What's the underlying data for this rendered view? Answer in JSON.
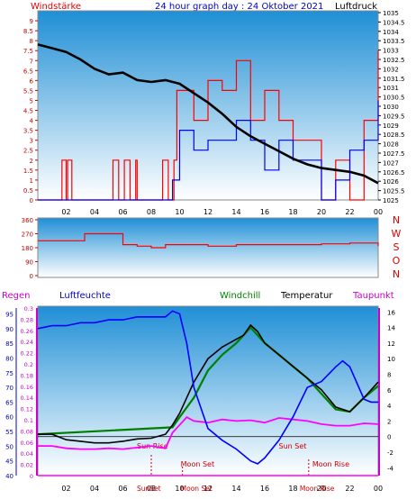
{
  "header": {
    "windstarke": "Windstärke",
    "title": "24 hour graph day : 24 Oktober 2021",
    "luftdruck": "Luftdruck"
  },
  "colors": {
    "wind": "#ff0000",
    "gust": "#0000ff",
    "pressure": "#000000",
    "humidity": "#0000ff",
    "windchill": "#008000",
    "temperature": "#000000",
    "dewpoint": "#ff00ff",
    "rain": "#ff00ff",
    "panel_top": "#1f8fd6",
    "panel_bottom": "#ffffff"
  },
  "x_ticks": [
    "02",
    "04",
    "06",
    "08",
    "10",
    "12",
    "14",
    "16",
    "18",
    "20",
    "22",
    "00"
  ],
  "compass": [
    "N",
    "W",
    "S",
    "O",
    "N"
  ],
  "chart_data": [
    {
      "type": "line",
      "title": "Windstärke / Luftdruck",
      "x_range_hours": [
        0,
        24
      ],
      "left_axis": {
        "label": "Windstärke",
        "ticks": [
          "0",
          "0.5",
          "1",
          "1.5",
          "2",
          "2.5",
          "3",
          "3.5",
          "4",
          "4.5",
          "5",
          "5.5",
          "6",
          "6.5",
          "7",
          "7.5",
          "8",
          "8.5",
          "9"
        ],
        "range": [
          0,
          9.5
        ]
      },
      "right_axis": {
        "label": "Luftdruck",
        "ticks": [
          "1025",
          "1025.5",
          "1026",
          "1026.5",
          "1027",
          "1027.5",
          "1028",
          "1028.5",
          "1029",
          "1029.5",
          "1030",
          "1030.5",
          "1031",
          "1031.5",
          "1032",
          "1032.5",
          "1033",
          "1033.5",
          "1034",
          "1034.5",
          "1035"
        ],
        "range": [
          1025,
          1035
        ]
      },
      "series": [
        {
          "name": "Luftdruck",
          "x": [
            0,
            1,
            2,
            3,
            4,
            5,
            6,
            7,
            8,
            9,
            10,
            11,
            12,
            13,
            14,
            15,
            16,
            17,
            18,
            19,
            20,
            21,
            22,
            23,
            24
          ],
          "values": [
            1033.3,
            1033.1,
            1032.9,
            1032.5,
            1032.0,
            1031.7,
            1031.8,
            1031.4,
            1031.3,
            1031.4,
            1031.2,
            1030.7,
            1030.2,
            1029.6,
            1028.9,
            1028.4,
            1028.0,
            1027.6,
            1027.2,
            1026.9,
            1026.7,
            1026.6,
            1026.5,
            1026.3,
            1025.9
          ]
        },
        {
          "name": "Wind",
          "x": [
            0,
            1.6,
            1.7,
            2.0,
            2.1,
            2.4,
            5.2,
            5.3,
            5.7,
            6.1,
            6.5,
            6.9,
            7.0,
            7.4,
            8.6,
            8.8,
            9.2,
            9.5,
            9.6,
            9.8,
            10,
            11,
            12,
            13,
            14,
            15,
            16,
            17,
            18,
            19,
            20,
            21,
            22,
            23,
            24
          ],
          "values": [
            0,
            0,
            2,
            0,
            2,
            0,
            0,
            2,
            0,
            2,
            0,
            2,
            0,
            0,
            0,
            2,
            0,
            0,
            2,
            5.5,
            5.5,
            4,
            6,
            5.5,
            7,
            4,
            5.5,
            4,
            3,
            3,
            0,
            2,
            0,
            4,
            7.5
          ]
        },
        {
          "name": "Böen",
          "x": [
            0,
            9,
            9.5,
            10,
            11,
            12,
            13,
            14,
            15,
            16,
            17,
            18,
            19,
            20,
            21,
            22,
            23,
            24
          ],
          "values": [
            0,
            0,
            1,
            3.5,
            2.5,
            3,
            3,
            4,
            3,
            1.5,
            3,
            2,
            2,
            0,
            1,
            2.5,
            3,
            5
          ]
        }
      ]
    },
    {
      "type": "line",
      "title": "Windrichtung",
      "x_range_hours": [
        0,
        24
      ],
      "y_ticks": [
        "0",
        "90",
        "180",
        "270",
        "360"
      ],
      "y_range": [
        0,
        360
      ],
      "series": [
        {
          "name": "Windrichtung",
          "x": [
            0,
            3.2,
            3.3,
            5.0,
            6.0,
            7.0,
            8.0,
            9.0,
            10,
            12,
            14,
            16,
            18,
            20,
            22,
            24
          ],
          "values": [
            225,
            225,
            270,
            270,
            200,
            190,
            180,
            200,
            200,
            190,
            200,
            200,
            200,
            205,
            210,
            190
          ]
        }
      ]
    },
    {
      "type": "line",
      "title": "Regen / Luftfeuchte / Temperatur",
      "x_range_hours": [
        0,
        24
      ],
      "labels": {
        "regen": "Regen",
        "luftfeuchte": "Luftfeuchte",
        "windchill": "Windchill",
        "temperatur": "Temperatur",
        "taupunkt": "Taupunkt"
      },
      "rain_axis": {
        "ticks": [
          "0",
          "0.02",
          "0.04",
          "0.06",
          "0.08",
          "0.1",
          "0.12",
          "0.14",
          "0.16",
          "0.18",
          "0.2",
          "0.22",
          "0.24",
          "0.26",
          "0.28",
          "0.3"
        ],
        "range": [
          0,
          0.3
        ]
      },
      "humidity_axis": {
        "ticks": [
          "40",
          "45",
          "50",
          "55",
          "60",
          "65",
          "70",
          "75",
          "80",
          "85",
          "90",
          "95"
        ],
        "range": [
          40,
          97
        ]
      },
      "temp_axis": {
        "ticks": [
          "-4",
          "-2",
          "0",
          "2",
          "4",
          "6",
          "8",
          "10",
          "12",
          "14",
          "16"
        ],
        "range": [
          -5,
          16.5
        ]
      },
      "series": [
        {
          "name": "Luftfeuchte",
          "x": [
            0,
            1,
            2,
            3,
            4,
            5,
            6,
            7,
            8,
            9,
            9.5,
            10,
            10.5,
            11,
            11.5,
            12,
            13,
            14,
            15,
            15.5,
            16,
            17,
            18,
            19,
            20,
            21,
            21.5,
            22,
            23,
            23.5,
            24
          ],
          "values": [
            90,
            91,
            91,
            92,
            92,
            93,
            93,
            94,
            94,
            94,
            96,
            95,
            85,
            70,
            63,
            56,
            52,
            49,
            45,
            44,
            46,
            52,
            60,
            70,
            72,
            77,
            79,
            77,
            66,
            65,
            65
          ]
        },
        {
          "name": "Temperatur",
          "x": [
            0,
            1,
            2,
            3,
            4,
            5,
            6,
            7,
            8,
            9,
            9.5,
            10,
            11,
            12,
            13,
            14,
            14.5,
            15,
            15.5,
            16,
            17,
            18,
            19,
            20,
            21,
            22,
            23,
            24
          ],
          "values": [
            0.3,
            0.3,
            -0.4,
            -0.6,
            -0.8,
            -0.8,
            -0.6,
            -0.3,
            -0.2,
            0.3,
            1.5,
            3,
            7,
            10,
            11.5,
            12.5,
            13,
            14.3,
            13.5,
            12,
            10.5,
            9,
            7.5,
            6,
            3.8,
            3.2,
            5,
            7
          ]
        },
        {
          "name": "Windchill",
          "x": [
            0,
            9.5,
            10,
            11,
            12,
            13,
            14,
            15,
            16,
            17,
            18,
            19,
            20,
            21,
            22,
            23,
            24
          ],
          "values": [
            0.3,
            1.2,
            2.5,
            5,
            8.5,
            10.5,
            12,
            14,
            12,
            10.5,
            9,
            7.5,
            5.5,
            3.5,
            3.2,
            5,
            6.5
          ]
        },
        {
          "name": "Taupunkt",
          "x": [
            0,
            1,
            2,
            3,
            4,
            5,
            6,
            7,
            8,
            9,
            9.5,
            10,
            10.5,
            11,
            12,
            13,
            14,
            15,
            16,
            17,
            18,
            19,
            20,
            21,
            22,
            23,
            24
          ],
          "values": [
            -1.2,
            -1.2,
            -1.5,
            -1.6,
            -1.6,
            -1.5,
            -1.6,
            -1.4,
            -1.2,
            -1.5,
            0.5,
            1.5,
            2.5,
            2,
            1.8,
            2.2,
            2,
            2.1,
            1.8,
            2.4,
            2.2,
            2,
            1.6,
            1.4,
            1.4,
            1.7,
            1.6
          ]
        },
        {
          "name": "Regen",
          "x": [
            0,
            24
          ],
          "values": [
            0,
            0
          ]
        }
      ],
      "annotations": [
        {
          "label": "Sun Rise",
          "x": 8.0
        },
        {
          "label": "Sun Set",
          "x": 18.0
        },
        {
          "label": "Moon Set",
          "x": 10.2
        },
        {
          "label": "Moon Rise",
          "x": 19.1
        }
      ],
      "bottom_labels": [
        "SunSet",
        "Moon Set",
        "Moon Rise"
      ]
    }
  ]
}
